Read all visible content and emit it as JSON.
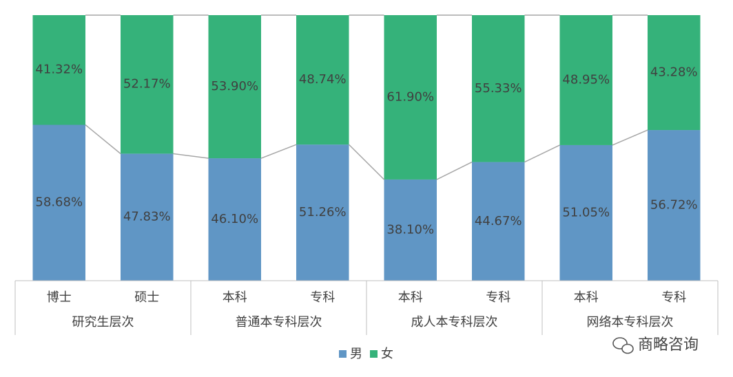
{
  "chart_data": {
    "type": "stacked_bar_100",
    "groups": [
      {
        "name": "研究生层次",
        "categories": [
          "博士",
          "硕士"
        ]
      },
      {
        "name": "普通本专科层次",
        "categories": [
          "本科",
          "专科"
        ]
      },
      {
        "name": "成人本专科层次",
        "categories": [
          "本科",
          "专科"
        ]
      },
      {
        "name": "网络本专科层次",
        "categories": [
          "本科",
          "专科"
        ]
      }
    ],
    "series": [
      {
        "name": "男",
        "color": "#6096c5",
        "values": [
          58.68,
          47.83,
          46.1,
          51.26,
          38.1,
          44.67,
          51.05,
          56.72
        ],
        "value_labels": [
          "58.68%",
          "47.83%",
          "46.10%",
          "51.26%",
          "38.10%",
          "44.67%",
          "51.05%",
          "56.72%"
        ]
      },
      {
        "name": "女",
        "color": "#35b27a",
        "values": [
          41.32,
          52.17,
          53.9,
          48.74,
          61.9,
          55.33,
          48.95,
          43.28
        ],
        "value_labels": [
          "41.32%",
          "52.17%",
          "53.90%",
          "48.74%",
          "61.90%",
          "55.33%",
          "48.95%",
          "43.28%"
        ]
      }
    ],
    "ylim": [
      0,
      100
    ],
    "series_lines": true,
    "legend": "bottom",
    "watermark": "商略咨询"
  }
}
